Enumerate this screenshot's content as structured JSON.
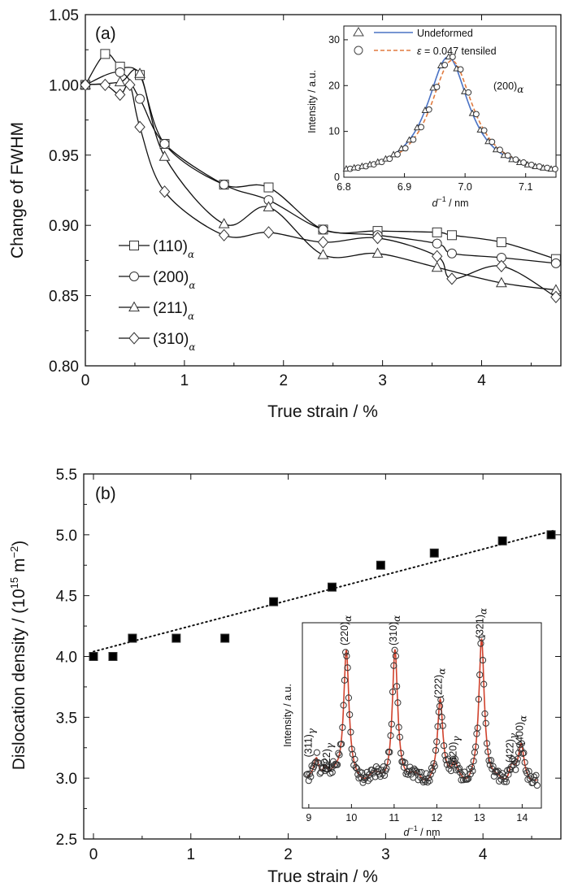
{
  "chart_data": [
    {
      "type": "scatter",
      "panel_label": "(a)",
      "xlabel": "True strain / %",
      "ylabel": "Change of FWHM",
      "xlim": [
        0,
        4.8
      ],
      "ylim": [
        0.8,
        1.05
      ],
      "xticks": [
        "0",
        "1",
        "2",
        "3",
        "4"
      ],
      "yticks": [
        "0.80",
        "0.85",
        "0.90",
        "0.95",
        "1.00",
        "1.05"
      ],
      "grid": false,
      "legend": "left-center",
      "series": [
        {
          "name": "(110)",
          "subscript": "α",
          "marker": "square",
          "x": [
            0,
            0.2,
            0.35,
            0.55,
            0.8,
            1.4,
            1.85,
            2.4,
            2.95,
            3.55,
            3.7,
            4.2,
            4.75
          ],
          "y": [
            1.0,
            1.022,
            1.013,
            1.007,
            0.958,
            0.929,
            0.927,
            0.897,
            0.896,
            0.895,
            0.893,
            0.888,
            0.876
          ]
        },
        {
          "name": "(200)",
          "subscript": "α",
          "marker": "circle",
          "x": [
            0,
            0.35,
            0.55,
            0.8,
            1.4,
            1.85,
            2.4,
            2.95,
            3.55,
            3.7,
            4.2,
            4.75
          ],
          "y": [
            1.0,
            1.009,
            0.99,
            0.958,
            0.929,
            0.918,
            0.897,
            0.893,
            0.887,
            0.88,
            0.877,
            0.873
          ]
        },
        {
          "name": "(211)",
          "subscript": "α",
          "marker": "triangle",
          "x": [
            0,
            0.35,
            0.55,
            0.8,
            1.4,
            1.85,
            2.4,
            2.95,
            3.55,
            4.2,
            4.75
          ],
          "y": [
            1.0,
            1.002,
            1.008,
            0.949,
            0.901,
            0.913,
            0.879,
            0.88,
            0.87,
            0.859,
            0.854
          ]
        },
        {
          "name": "(310)",
          "subscript": "α",
          "marker": "diamond",
          "x": [
            0,
            0.2,
            0.35,
            0.45,
            0.55,
            0.8,
            1.4,
            1.85,
            2.4,
            2.95,
            3.55,
            3.7,
            4.2,
            4.75
          ],
          "y": [
            1.0,
            1.0,
            0.993,
            1.0,
            0.97,
            0.924,
            0.893,
            0.895,
            0.888,
            0.891,
            0.878,
            0.862,
            0.871,
            0.849
          ]
        }
      ],
      "inset": {
        "xlabel_base": "d",
        "xlabel_rest": " / nm",
        "ylabel": "Intensity / a.u.",
        "xlim": [
          6.8,
          7.15
        ],
        "ylim": [
          0,
          33
        ],
        "xticks": [
          "6.8",
          "6.9",
          "7.0",
          "7.1"
        ],
        "yticks": [
          "0",
          "10",
          "20",
          "30"
        ],
        "peak_label": "(200)",
        "peak_subscript": "α",
        "peak_center": 6.975,
        "peak_height": 26,
        "legend_lines": [
          {
            "label": "Undeformed",
            "color": "#4a72c4",
            "style": "solid",
            "marker": "triangle"
          },
          {
            "label": " = 0.047 tensiled",
            "symbol": "ε",
            "color": "#e07a3e",
            "style": "dashed",
            "marker": "circle"
          }
        ]
      }
    },
    {
      "type": "scatter",
      "panel_label": "(b)",
      "xlabel": "True strain / %",
      "ylabel": "Dislocation density / (10",
      "ylabel_exp": "15",
      "ylabel_unit": " m",
      "ylabel_unit_exp": "−2",
      "ylabel_end": ")",
      "xlim": [
        -0.1,
        4.8
      ],
      "ylim": [
        2.5,
        5.5
      ],
      "xticks": [
        "0",
        "1",
        "2",
        "3",
        "4"
      ],
      "yticks": [
        "2.5",
        "3.0",
        "3.5",
        "4.0",
        "4.5",
        "5.0",
        "5.5"
      ],
      "grid": false,
      "series": [
        {
          "name": "",
          "marker": "filled-square",
          "x": [
            0,
            0.2,
            0.4,
            0.85,
            1.35,
            1.85,
            2.45,
            2.95,
            3.5,
            4.2,
            4.7
          ],
          "y": [
            4.0,
            4.0,
            4.15,
            4.15,
            4.15,
            4.45,
            4.57,
            4.75,
            4.85,
            4.95,
            5.0
          ]
        }
      ],
      "fit_line": {
        "style": "dotted",
        "x": [
          0,
          4.75
        ],
        "y": [
          4.04,
          5.04
        ]
      },
      "inset": {
        "xlabel_base": "d",
        "xlabel_rest": " / nm",
        "ylabel": "Intensity / a.u.",
        "xlim": [
          8.85,
          14.45
        ],
        "xticks": [
          "9",
          "10",
          "11",
          "12",
          "13",
          "14"
        ],
        "fit_color": "#d0412c",
        "peaks": [
          {
            "pos": 9.18,
            "height": 0.15,
            "label": "(311)",
            "sub": "γ"
          },
          {
            "pos": 9.38,
            "height": 0.1,
            "label": "(222)",
            "sub": "γ"
          },
          {
            "pos": 9.88,
            "height": 0.92,
            "label": "(220)",
            "sub": "α"
          },
          {
            "pos": 11.02,
            "height": 0.92,
            "label": "(310)",
            "sub": "α"
          },
          {
            "pos": 12.08,
            "height": 0.55,
            "label": "(222)",
            "sub": "α"
          },
          {
            "pos": 12.42,
            "height": 0.08,
            "label": "(420)",
            "sub": "γ"
          },
          {
            "pos": 13.05,
            "height": 0.97,
            "label": "(321)",
            "sub": "α"
          },
          {
            "pos": 13.75,
            "height": 0.1,
            "label": "(422)",
            "sub": "γ"
          },
          {
            "pos": 13.98,
            "height": 0.22,
            "label": "(400)",
            "sub": "α"
          }
        ]
      }
    }
  ]
}
